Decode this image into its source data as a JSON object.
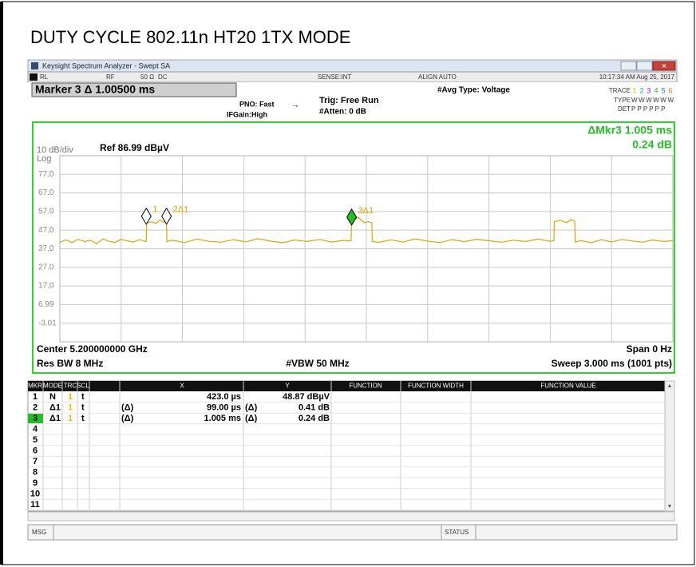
{
  "title": "DUTY CYCLE 802.11n HT20 1TX MODE",
  "window": {
    "title": "Keysight Spectrum Analyzer - Swept SA"
  },
  "status": {
    "rl": "RL",
    "rf": "RF",
    "impedance": "50 Ω",
    "coupling": "DC",
    "sense": "SENSE:INT",
    "align": "ALIGN AUTO",
    "time": "10:17:34 AM Aug 25, 2017"
  },
  "marker_box": "Marker 3 Δ 1.00500 ms",
  "settings": {
    "pno": "PNO: Fast",
    "ifgain": "IFGain:High",
    "trig": "Trig: Free Run",
    "atten": "#Atten: 0 dB",
    "avg": "#Avg Type: Voltage"
  },
  "trace_info": {
    "trace_label": "TRACE",
    "trace_nums": [
      "1",
      "2",
      "3",
      "4",
      "5",
      "6"
    ],
    "trace_colors": [
      "#d8b800",
      "#00b8d8",
      "#d000d0",
      "#20b020",
      "#3060ff",
      "#e08000"
    ],
    "type_label": "TYPE",
    "type": "WWWWWW",
    "det_label": "DET",
    "det": "P P P P P P"
  },
  "plot": {
    "scale": "10 dB/div",
    "ref": "Ref 86.99 dBµV",
    "log": "Log",
    "readout": [
      "ΔMkr3 1.005 ms",
      "0.24 dB"
    ],
    "ylim": [
      -13.01,
      86.99
    ],
    "yticks": [
      {
        "value": 77,
        "label": "77.0"
      },
      {
        "value": 67,
        "label": "67.0"
      },
      {
        "value": 57,
        "label": "57.0"
      },
      {
        "value": 47,
        "label": "47.0"
      },
      {
        "value": 37,
        "label": "37.0"
      },
      {
        "value": 27,
        "label": "27.0"
      },
      {
        "value": 17,
        "label": "17.0"
      },
      6.99,
      -3.01
    ],
    "xlim": [
      0,
      3
    ],
    "x_divisions": 10,
    "grid": true,
    "trace": {
      "color": "#e8a000",
      "x": [
        0,
        0.03,
        0.06,
        0.09,
        0.12,
        0.15,
        0.18,
        0.21,
        0.24,
        0.27,
        0.3,
        0.33,
        0.36,
        0.39,
        0.42,
        0.423,
        0.425,
        0.45,
        0.47,
        0.49,
        0.51,
        0.52,
        0.522,
        0.524,
        0.55,
        0.61,
        0.67,
        0.73,
        0.79,
        0.85,
        0.91,
        0.97,
        1.03,
        1.09,
        1.15,
        1.21,
        1.27,
        1.33,
        1.39,
        1.425,
        1.428,
        1.43,
        1.46,
        1.49,
        1.51,
        1.527,
        1.529,
        1.56,
        1.62,
        1.68,
        1.74,
        1.8,
        1.86,
        1.92,
        1.98,
        2.04,
        2.1,
        2.16,
        2.22,
        2.28,
        2.34,
        2.4,
        2.418,
        2.42,
        2.45,
        2.48,
        2.5,
        2.52,
        2.522,
        2.55,
        2.6,
        2.65,
        2.7,
        2.75,
        2.8,
        2.85,
        2.9,
        2.95,
        3.0
      ],
      "y": [
        40.5,
        41.8,
        40.2,
        42.1,
        40.9,
        41.5,
        39.8,
        42.3,
        41.0,
        40.4,
        42.0,
        41.2,
        40.6,
        41.9,
        40.8,
        41.0,
        50.8,
        51.5,
        50.6,
        52.4,
        51.2,
        53.0,
        52.0,
        40.8,
        41.6,
        40.3,
        42.2,
        41.0,
        40.5,
        41.9,
        40.7,
        42.4,
        41.1,
        40.2,
        41.7,
        40.9,
        42.0,
        40.6,
        41.5,
        41.2,
        53.5,
        52.0,
        54.0,
        51.0,
        51.6,
        51.0,
        41.0,
        40.4,
        41.8,
        40.6,
        42.3,
        41.1,
        40.3,
        41.9,
        40.8,
        42.1,
        41.3,
        40.5,
        41.6,
        40.9,
        42.2,
        41.0,
        41.3,
        51.5,
        52.3,
        51.0,
        52.6,
        51.8,
        40.6,
        41.4,
        40.2,
        41.9,
        40.7,
        42.0,
        41.2,
        40.5,
        41.7,
        40.9,
        41.3
      ]
    },
    "markers": [
      {
        "label": "1",
        "x": 0.423,
        "y": 54.5,
        "color": "#ffffff"
      },
      {
        "label": "2Δ1",
        "x": 0.522,
        "y": 54.5,
        "color": "#ffffff"
      },
      {
        "label": "3Δ1",
        "x": 1.428,
        "y": 54.0,
        "color": "#22c022"
      }
    ]
  },
  "footer": {
    "center": "Center 5.200000000 GHz",
    "span": "Span 0 Hz",
    "rbw": "Res BW 8 MHz",
    "vbw": "#VBW 50 MHz",
    "sweep": "Sweep  3.000 ms (1001 pts)"
  },
  "table": {
    "headers": [
      "MKR",
      "MODE",
      "TRC",
      "SCL",
      "X",
      "Y",
      "FUNCTION",
      "FUNCTION WIDTH",
      "FUNCTION VALUE"
    ],
    "rows": [
      {
        "mkr": "1",
        "mode": "N",
        "trc": "1",
        "scl": "t",
        "x": "423.0 µs",
        "y": "48.87 dBµV"
      },
      {
        "mkr": "2",
        "mode": "Δ1",
        "trc": "1",
        "scl": "t",
        "xref": "(Δ)",
        "x": "99.00 µs",
        "yref": "(Δ)",
        "y": "0.41 dB"
      },
      {
        "mkr": "3",
        "mode": "Δ1",
        "trc": "1",
        "scl": "t",
        "xref": "(Δ)",
        "x": "1.005 ms",
        "yref": "(Δ)",
        "y": "0.24 dB"
      },
      {
        "mkr": "4"
      },
      {
        "mkr": "5"
      },
      {
        "mkr": "6"
      },
      {
        "mkr": "7"
      },
      {
        "mkr": "8"
      },
      {
        "mkr": "9"
      },
      {
        "mkr": "10"
      },
      {
        "mkr": "11"
      }
    ]
  },
  "bottom": {
    "msg": "MSG",
    "status": "STATUS"
  }
}
